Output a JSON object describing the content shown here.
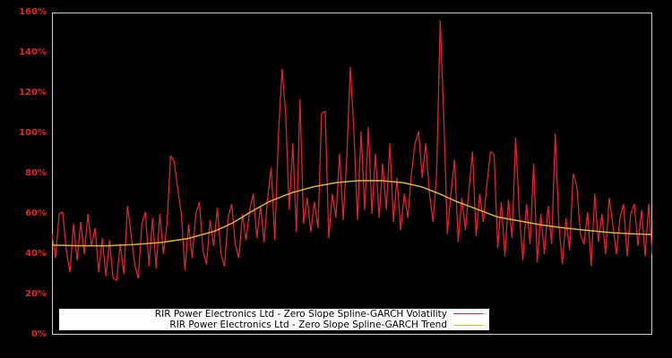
{
  "chart_data": {
    "type": "line",
    "title": "",
    "xlabel": "",
    "ylabel": "",
    "ylim": [
      0,
      160
    ],
    "y_ticks": [
      "0%",
      "20%",
      "40%",
      "60%",
      "80%",
      "100%",
      "120%",
      "140%",
      "160%"
    ],
    "y_tick_values": [
      0,
      20,
      40,
      60,
      80,
      100,
      120,
      140,
      160
    ],
    "x_ticks": [],
    "grid": false,
    "legend_position": "lower-left inside",
    "x_note": "x is normalized time position (0 = left edge, 1 = right edge); no x-axis labels shown",
    "series": [
      {
        "name": "RIR Power Electronics Ltd - Zero Slope Spline-GARCH Volatility",
        "color": "#dd2430",
        "x_range": [
          0,
          1
        ],
        "values": [
          50,
          38,
          60,
          61,
          42,
          31,
          55,
          37,
          56,
          40,
          60,
          44,
          53,
          31,
          48,
          29,
          47,
          28,
          27,
          45,
          30,
          64,
          50,
          35,
          28,
          55,
          61,
          34,
          58,
          33,
          60,
          40,
          55,
          89,
          86,
          72,
          60,
          32,
          55,
          38,
          60,
          66,
          42,
          35,
          57,
          44,
          63,
          40,
          34,
          58,
          65,
          45,
          38,
          60,
          47,
          62,
          70,
          48,
          64,
          46,
          68,
          83,
          47,
          100,
          132,
          110,
          62,
          95,
          51,
          117,
          55,
          68,
          51,
          66,
          53,
          110,
          111,
          48,
          70,
          58,
          90,
          57,
          88,
          133,
          101,
          57,
          101,
          62,
          103,
          60,
          90,
          58,
          85,
          62,
          95,
          56,
          78,
          52,
          70,
          58,
          80,
          95,
          101,
          78,
          95,
          70,
          56,
          80,
          156,
          108,
          50,
          70,
          87,
          46,
          68,
          52,
          72,
          91,
          49,
          70,
          56,
          75,
          91,
          89,
          43,
          66,
          39,
          67,
          48,
          98,
          60,
          37,
          65,
          45,
          85,
          36,
          60,
          40,
          64,
          45,
          100,
          55,
          35,
          58,
          42,
          80,
          74,
          50,
          45,
          61,
          34,
          70,
          46,
          60,
          40,
          68,
          55,
          40,
          58,
          65,
          39,
          60,
          65,
          44,
          62,
          39,
          65,
          40
        ]
      },
      {
        "name": "RIR Power Electronics Ltd - Zero Slope Spline-GARCH Trend",
        "color": "#d9b23a",
        "points": [
          [
            0.0,
            44.5
          ],
          [
            0.048,
            44.2
          ],
          [
            0.093,
            44.2
          ],
          [
            0.137,
            44.8
          ],
          [
            0.182,
            45.8
          ],
          [
            0.227,
            47.8
          ],
          [
            0.272,
            51.5
          ],
          [
            0.301,
            55.5
          ],
          [
            0.331,
            61.0
          ],
          [
            0.361,
            66.0
          ],
          [
            0.399,
            70.5
          ],
          [
            0.436,
            73.5
          ],
          [
            0.473,
            75.5
          ],
          [
            0.51,
            76.5
          ],
          [
            0.548,
            76.6
          ],
          [
            0.585,
            75.5
          ],
          [
            0.615,
            73.5
          ],
          [
            0.645,
            70.0
          ],
          [
            0.675,
            66.0
          ],
          [
            0.704,
            62.8
          ],
          [
            0.742,
            58.5
          ],
          [
            0.779,
            56.5
          ],
          [
            0.816,
            54.5
          ],
          [
            0.854,
            53.0
          ],
          [
            0.891,
            51.8
          ],
          [
            0.928,
            50.8
          ],
          [
            0.966,
            50.1
          ],
          [
            1.0,
            49.8
          ]
        ]
      }
    ]
  },
  "colors": {
    "background": "#000000",
    "axis_frame": "#cfcfcf",
    "tick_label": "#e02828",
    "volatility": "#dd2430",
    "trend": "#d9b23a",
    "legend_bg": "#ffffff"
  },
  "legend": {
    "items": [
      {
        "label": "RIR Power Electronics Ltd - Zero Slope Spline-GARCH Volatility",
        "color": "#dd2430"
      },
      {
        "label": "RIR Power Electronics Ltd - Zero Slope Spline-GARCH Trend",
        "color": "#d9b23a"
      }
    ]
  }
}
